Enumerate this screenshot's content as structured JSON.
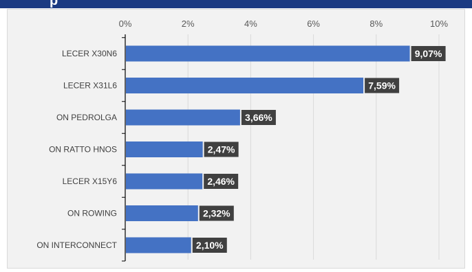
{
  "header": {
    "title": "p"
  },
  "colors": {
    "bar": "#4472c4",
    "label_bg": "#404040",
    "label_text": "#ffffff",
    "grid": "#d9d9d9",
    "axis": "#000000",
    "background": "#f2f2f2",
    "header": "#1b3a82"
  },
  "chart_data": {
    "type": "bar",
    "orientation": "horizontal",
    "title": "",
    "xlabel": "",
    "ylabel": "",
    "categories": [
      "LECER X30N6",
      "LECER X31L6",
      "ON PEDROLGA",
      "ON RATTO HNOS",
      "LECER X15Y6",
      "ON ROWING",
      "ON INTERCONNECT"
    ],
    "values": [
      9.07,
      7.59,
      3.66,
      2.47,
      2.46,
      2.32,
      2.1
    ],
    "data_labels": [
      "9,07%",
      "7,59%",
      "3,66%",
      "2,47%",
      "2,46%",
      "2,32%",
      "2,10%"
    ],
    "xlim": [
      0,
      10
    ],
    "ticks": [
      0,
      2,
      4,
      6,
      8,
      10
    ],
    "tick_labels": [
      "0%",
      "2%",
      "4%",
      "6%",
      "8%",
      "10%"
    ],
    "axis_position": "top",
    "grid": true,
    "legend": "none"
  }
}
